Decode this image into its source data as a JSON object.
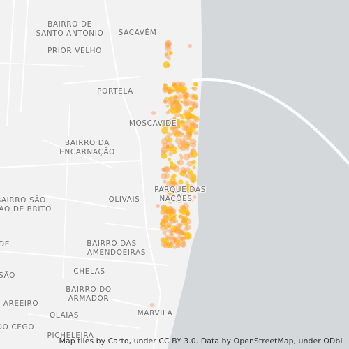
{
  "map": {
    "labels": [
      {
        "lines": [
          "BAIRRO DE",
          "SANTO ANTÓNIO"
        ]
      },
      {
        "lines": [
          "SACAVÉM"
        ]
      },
      {
        "lines": [
          "PRIOR VELHO"
        ]
      },
      {
        "lines": [
          "PORTELA"
        ]
      },
      {
        "lines": [
          "MOSCAVIDE"
        ]
      },
      {
        "lines": [
          "BAIRRO DA",
          "ENCARNAÇÃO"
        ]
      },
      {
        "lines": [
          "PARQUE DAS",
          "NAÇÕES"
        ]
      },
      {
        "lines": [
          "OLIVAIS"
        ]
      },
      {
        "lines": [
          "BAIRRO SÃO",
          "JOÃO DE BRITO"
        ]
      },
      {
        "lines": [
          "BAIRRO DAS",
          "AMENDOEIRAS"
        ]
      },
      {
        "lines": [
          "CHELAS"
        ]
      },
      {
        "lines": [
          "BAIRRO DO",
          "ARMADOR"
        ]
      },
      {
        "lines": [
          "AREEIRO"
        ]
      },
      {
        "lines": [
          "OLAIAS"
        ]
      },
      {
        "lines": [
          "MARVILA"
        ]
      },
      {
        "lines": [
          "DO CEGO"
        ]
      },
      {
        "lines": [
          "PICHELEIRA"
        ]
      },
      {
        "lines": [
          "SÃO"
        ]
      },
      {
        "lines": [
          "DE"
        ]
      }
    ],
    "attribution": "Map tiles by Carto, under CC BY 3.0. Data by OpenStreetMap, under ODbL."
  }
}
